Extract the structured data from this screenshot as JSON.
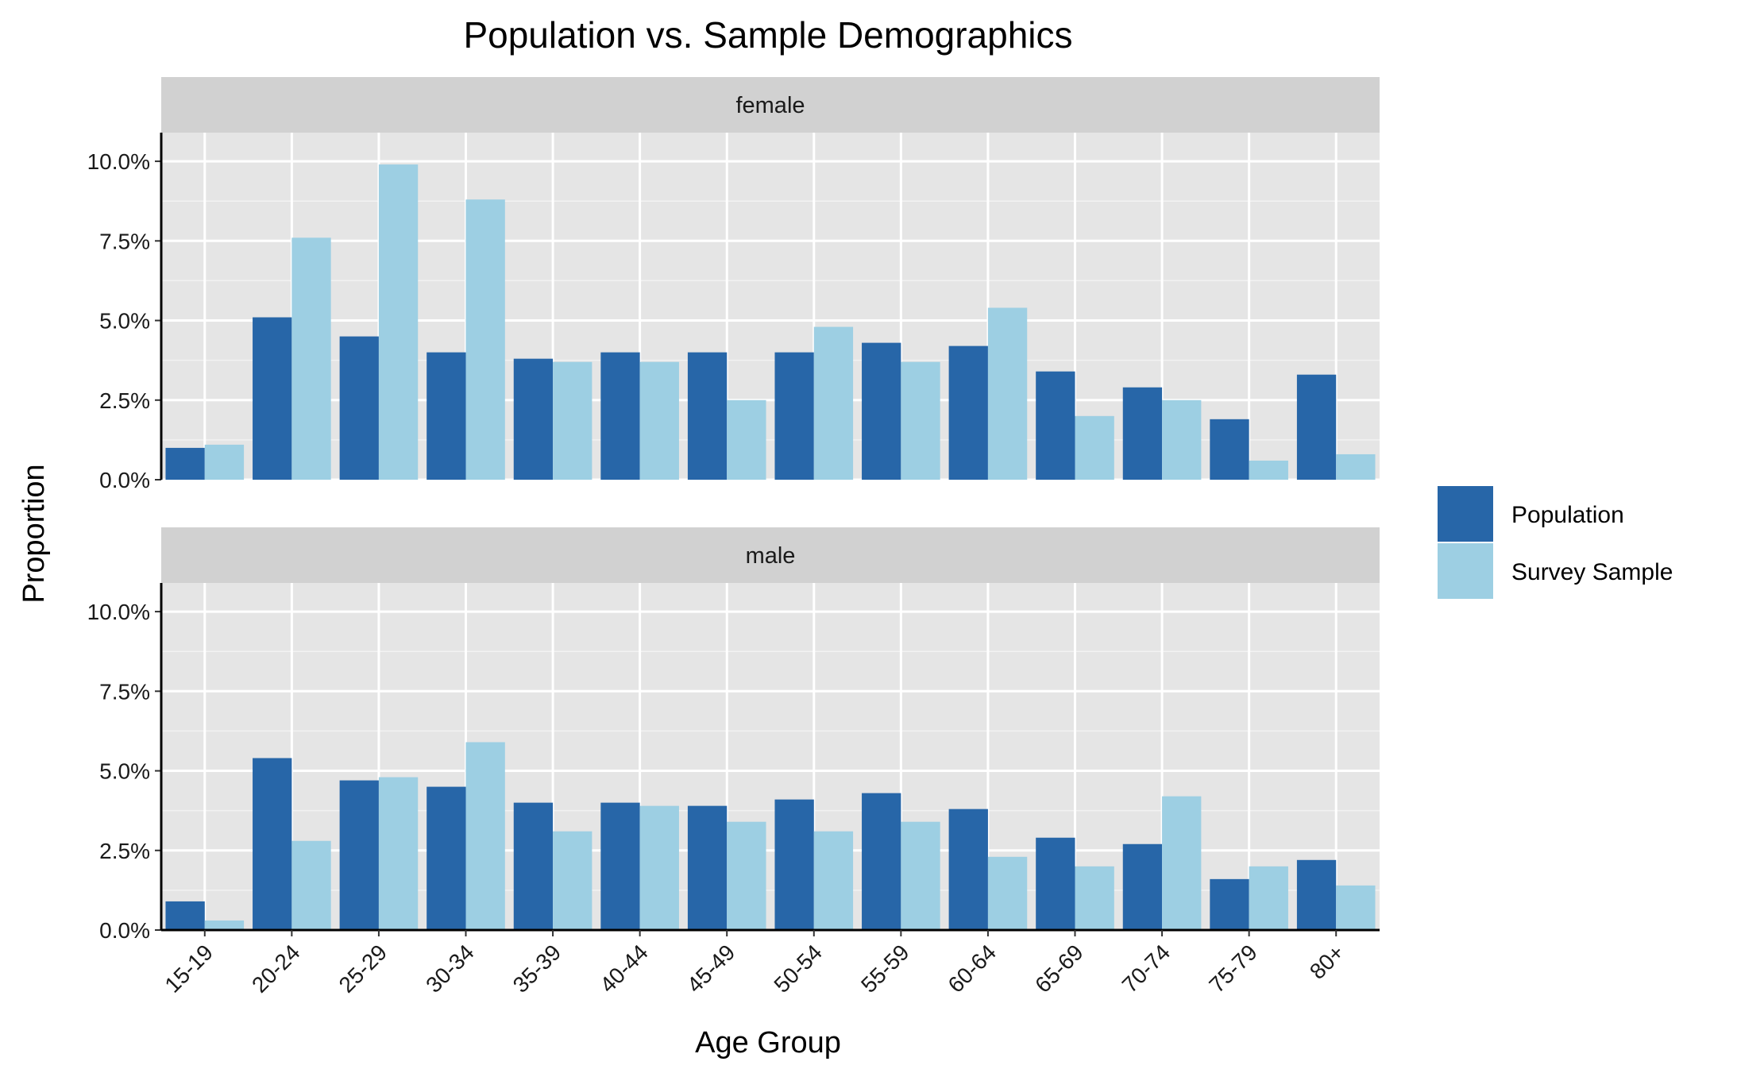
{
  "chart_data": {
    "type": "bar",
    "title": "Population vs. Sample Demographics",
    "xlabel": "Age Group",
    "ylabel": "Proportion",
    "ylim": [
      0,
      0.109
    ],
    "y_ticks": [
      0,
      0.025,
      0.05,
      0.075,
      0.1
    ],
    "y_tick_labels": [
      "0.0%",
      "2.5%",
      "5.0%",
      "7.5%",
      "10.0%"
    ],
    "categories": [
      "15-19",
      "20-24",
      "25-29",
      "30-34",
      "35-39",
      "40-44",
      "45-49",
      "50-54",
      "55-59",
      "60-64",
      "65-69",
      "70-74",
      "75-79",
      "80+"
    ],
    "grid": true,
    "legend_position": "right",
    "legend": [
      {
        "name": "Population",
        "color": "#2766a8"
      },
      {
        "name": "Survey Sample",
        "color": "#9dcfe3"
      }
    ],
    "facets": [
      {
        "label": "female",
        "series": [
          {
            "name": "Population",
            "values": [
              0.01,
              0.051,
              0.045,
              0.04,
              0.038,
              0.04,
              0.04,
              0.04,
              0.043,
              0.042,
              0.034,
              0.029,
              0.019,
              0.033
            ]
          },
          {
            "name": "Survey Sample",
            "values": [
              0.011,
              0.076,
              0.099,
              0.088,
              0.037,
              0.037,
              0.025,
              0.048,
              0.037,
              0.054,
              0.02,
              0.025,
              0.006,
              0.008
            ]
          }
        ]
      },
      {
        "label": "male",
        "series": [
          {
            "name": "Population",
            "values": [
              0.009,
              0.054,
              0.047,
              0.045,
              0.04,
              0.04,
              0.039,
              0.041,
              0.043,
              0.038,
              0.029,
              0.027,
              0.016,
              0.022
            ]
          },
          {
            "name": "Survey Sample",
            "values": [
              0.003,
              0.028,
              0.048,
              0.059,
              0.031,
              0.039,
              0.034,
              0.031,
              0.034,
              0.023,
              0.02,
              0.042,
              0.02,
              0.014
            ]
          }
        ]
      }
    ]
  }
}
